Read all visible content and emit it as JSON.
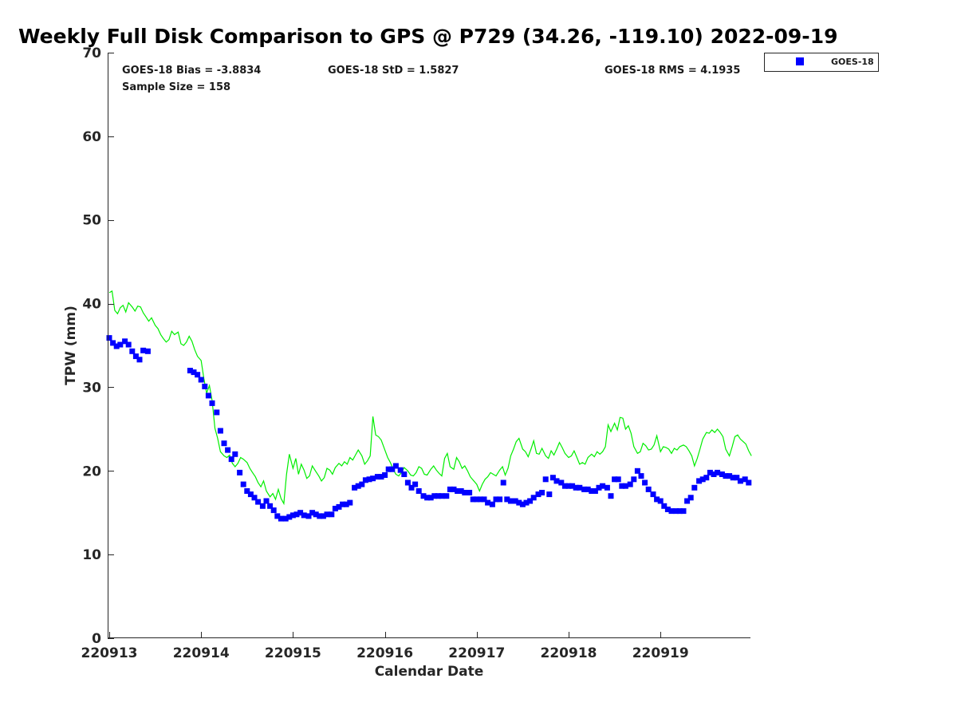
{
  "chart_data": {
    "type": "scatter",
    "title": "Weekly Full Disk Comparison to GPS @ P729 (34.26, -119.10) 2022-09-19",
    "xlabel": "Calendar Date",
    "ylabel": "TPW (mm)",
    "xlim": [
      220913,
      220920
    ],
    "ylim": [
      0,
      70
    ],
    "x_ticks": [
      "220913",
      "220914",
      "220915",
      "220916",
      "220917",
      "220918",
      "220919"
    ],
    "y_ticks": [
      0,
      10,
      20,
      30,
      40,
      50,
      60,
      70
    ],
    "grid": false,
    "legend": {
      "placement": "top-right",
      "entries": [
        "GOES-18"
      ]
    },
    "stats": {
      "bias": "GOES-18 Bias = -3.8834",
      "std": "GOES-18 StD = 1.5827",
      "rms": "GOES-18 RMS = 4.1935",
      "sample": "Sample Size = 158"
    },
    "series": [
      {
        "name": "GOES-18",
        "type": "scatter",
        "color": "#0000ff",
        "x": [
          220913.0,
          220913.04,
          220913.08,
          220913.12,
          220913.17,
          220913.21,
          220913.25,
          220913.29,
          220913.33,
          220913.37,
          220913.42,
          220913.88,
          220913.92,
          220913.96,
          220914.0,
          220914.04,
          220914.08,
          220914.12,
          220914.17,
          220914.21,
          220914.25,
          220914.29,
          220914.33,
          220914.37,
          220914.42,
          220914.46,
          220914.5,
          220914.54,
          220914.58,
          220914.62,
          220914.67,
          220914.71,
          220914.75,
          220914.79,
          220914.83,
          220914.87,
          220914.92,
          220914.96,
          220915.0,
          220915.04,
          220915.08,
          220915.12,
          220915.17,
          220915.21,
          220915.25,
          220915.29,
          220915.33,
          220915.37,
          220915.42,
          220915.46,
          220915.5,
          220915.54,
          220915.58,
          220915.62,
          220915.67,
          220915.71,
          220915.75,
          220915.79,
          220915.83,
          220915.87,
          220915.92,
          220915.96,
          220916.0,
          220916.04,
          220916.08,
          220916.12,
          220916.17,
          220916.21,
          220916.25,
          220916.29,
          220916.33,
          220916.37,
          220916.42,
          220916.46,
          220916.5,
          220916.54,
          220916.58,
          220916.62,
          220916.67,
          220916.71,
          220916.75,
          220916.79,
          220916.83,
          220916.87,
          220916.92,
          220916.96,
          220917.0,
          220917.04,
          220917.08,
          220917.12,
          220917.17,
          220917.21,
          220917.25,
          220917.29,
          220917.33,
          220917.37,
          220917.42,
          220917.46,
          220917.5,
          220917.54,
          220917.58,
          220917.62,
          220917.67,
          220917.71,
          220917.75,
          220917.79,
          220917.83,
          220917.87,
          220917.92,
          220917.96,
          220918.0,
          220918.04,
          220918.08,
          220918.12,
          220918.17,
          220918.21,
          220918.25,
          220918.29,
          220918.33,
          220918.37,
          220918.42,
          220918.46,
          220918.5,
          220918.54,
          220918.58,
          220918.62,
          220918.67,
          220918.71,
          220918.75,
          220918.79,
          220918.83,
          220918.87,
          220918.92,
          220918.96,
          220919.0,
          220919.04,
          220919.08,
          220919.12,
          220919.17,
          220919.21,
          220919.25,
          220919.29,
          220919.33,
          220919.37,
          220919.42,
          220919.46,
          220919.5,
          220919.54,
          220919.58,
          220919.62,
          220919.67,
          220919.71,
          220919.75,
          220919.79,
          220919.83,
          220919.87,
          220919.92,
          220919.96
        ],
        "y": [
          35.9,
          35.3,
          34.9,
          35.1,
          35.5,
          35.1,
          34.3,
          33.7,
          33.3,
          34.4,
          34.3,
          32.0,
          31.8,
          31.5,
          30.9,
          30.1,
          29.0,
          28.1,
          27.0,
          24.8,
          23.3,
          22.5,
          21.4,
          22.0,
          19.8,
          18.4,
          17.6,
          17.2,
          16.8,
          16.3,
          15.8,
          16.4,
          15.8,
          15.3,
          14.6,
          14.3,
          14.3,
          14.5,
          14.7,
          14.8,
          15.0,
          14.7,
          14.6,
          15.0,
          14.8,
          14.6,
          14.6,
          14.8,
          14.8,
          15.5,
          15.7,
          16.0,
          16.0,
          16.2,
          18.0,
          18.2,
          18.4,
          18.9,
          19.0,
          19.1,
          19.3,
          19.3,
          19.5,
          20.2,
          20.2,
          20.6,
          20.1,
          19.6,
          18.6,
          18.0,
          18.4,
          17.6,
          17.0,
          16.8,
          16.8,
          17.0,
          17.0,
          17.0,
          17.0,
          17.8,
          17.8,
          17.6,
          17.6,
          17.4,
          17.4,
          16.6,
          16.6,
          16.6,
          16.6,
          16.2,
          16.0,
          16.6,
          16.6,
          18.6,
          16.6,
          16.4,
          16.4,
          16.2,
          16.0,
          16.2,
          16.4,
          16.8,
          17.2,
          17.4,
          19.0,
          17.2,
          19.2,
          18.8,
          18.6,
          18.2,
          18.2,
          18.2,
          18.0,
          18.0,
          17.8,
          17.8,
          17.6,
          17.6,
          18.0,
          18.2,
          18.0,
          17.0,
          19.0,
          19.0,
          18.2,
          18.2,
          18.4,
          19.0,
          20.0,
          19.4,
          18.6,
          17.8,
          17.2,
          16.6,
          16.4,
          15.8,
          15.4,
          15.2,
          15.2,
          15.2,
          15.2,
          16.4,
          16.8,
          18.0,
          18.8,
          19.0,
          19.2,
          19.8,
          19.6,
          19.8,
          19.6,
          19.4,
          19.4,
          19.2,
          19.2,
          18.8,
          19.0,
          18.6
        ]
      },
      {
        "name": "",
        "type": "line",
        "color": "#00ee00",
        "x": [
          220913.0,
          220913.03,
          220913.06,
          220913.09,
          220913.12,
          220913.15,
          220913.18,
          220913.21,
          220913.25,
          220913.28,
          220913.31,
          220913.34,
          220913.37,
          220913.4,
          220913.43,
          220913.46,
          220913.5,
          220913.53,
          220913.56,
          220913.59,
          220913.62,
          220913.65,
          220913.68,
          220913.71,
          220913.75,
          220913.78,
          220913.81,
          220913.84,
          220913.87,
          220913.9,
          220913.93,
          220913.96,
          220914.0,
          220914.03,
          220914.06,
          220914.09,
          220914.12,
          220914.15,
          220914.18,
          220914.21,
          220914.25,
          220914.28,
          220914.31,
          220914.34,
          220914.37,
          220914.4,
          220914.43,
          220914.46,
          220914.5,
          220914.53,
          220914.56,
          220914.59,
          220914.62,
          220914.65,
          220914.68,
          220914.71,
          220914.75,
          220914.78,
          220914.81,
          220914.84,
          220914.87,
          220914.9,
          220914.93,
          220914.96,
          220915.0,
          220915.03,
          220915.06,
          220915.09,
          220915.12,
          220915.15,
          220915.18,
          220915.21,
          220915.25,
          220915.28,
          220915.31,
          220915.34,
          220915.37,
          220915.4,
          220915.43,
          220915.46,
          220915.5,
          220915.53,
          220915.56,
          220915.59,
          220915.62,
          220915.65,
          220915.68,
          220915.71,
          220915.75,
          220915.78,
          220915.81,
          220915.84,
          220915.87,
          220915.9,
          220915.93,
          220915.96,
          220916.0,
          220916.03,
          220916.06,
          220916.09,
          220916.12,
          220916.15,
          220916.18,
          220916.21,
          220916.25,
          220916.28,
          220916.31,
          220916.34,
          220916.37,
          220916.4,
          220916.43,
          220916.46,
          220916.5,
          220916.53,
          220916.56,
          220916.59,
          220916.62,
          220916.65,
          220916.68,
          220916.71,
          220916.75,
          220916.78,
          220916.81,
          220916.84,
          220916.87,
          220916.9,
          220916.93,
          220916.96,
          220917.0,
          220917.03,
          220917.06,
          220917.09,
          220917.12,
          220917.15,
          220917.18,
          220917.21,
          220917.25,
          220917.28,
          220917.31,
          220917.34,
          220917.37,
          220917.4,
          220917.43,
          220917.46,
          220917.5,
          220917.53,
          220917.56,
          220917.59,
          220917.62,
          220917.65,
          220917.68,
          220917.71,
          220917.75,
          220917.78,
          220917.81,
          220917.84,
          220917.87,
          220917.9,
          220917.93,
          220917.96,
          220918.0,
          220918.03,
          220918.06,
          220918.09,
          220918.12,
          220918.15,
          220918.18,
          220918.21,
          220918.25,
          220918.28,
          220918.31,
          220918.34,
          220918.37,
          220918.4,
          220918.43,
          220918.46,
          220918.5,
          220918.53,
          220918.56,
          220918.59,
          220918.62,
          220918.65,
          220918.68,
          220918.71,
          220918.75,
          220918.78,
          220918.81,
          220918.84,
          220918.87,
          220918.9,
          220918.93,
          220918.96,
          220919.0,
          220919.03,
          220919.06,
          220919.09,
          220919.12,
          220919.15,
          220919.18,
          220919.21,
          220919.25,
          220919.28,
          220919.31,
          220919.34,
          220919.37,
          220919.4,
          220919.43,
          220919.46,
          220919.5,
          220919.53,
          220919.56,
          220919.59,
          220919.62,
          220919.65,
          220919.68,
          220919.71,
          220919.75,
          220919.78,
          220919.81,
          220919.84,
          220919.87,
          220919.9,
          220919.93,
          220919.96,
          220919.99
        ],
        "y": [
          41.3,
          41.5,
          39.2,
          38.8,
          39.5,
          39.8,
          39.0,
          40.1,
          39.6,
          39.1,
          39.7,
          39.6,
          38.9,
          38.4,
          37.9,
          38.3,
          37.4,
          37.0,
          36.3,
          35.8,
          35.4,
          35.7,
          36.7,
          36.3,
          36.6,
          35.2,
          35.0,
          35.4,
          36.1,
          35.5,
          34.5,
          33.7,
          33.2,
          31.0,
          29.3,
          30.2,
          28.4,
          25.1,
          23.9,
          22.3,
          21.8,
          21.6,
          21.9,
          20.9,
          20.5,
          20.9,
          21.6,
          21.4,
          21.0,
          20.3,
          19.8,
          19.3,
          18.6,
          18.1,
          18.8,
          17.6,
          16.9,
          17.3,
          16.6,
          17.8,
          16.7,
          16.1,
          19.6,
          22.0,
          20.3,
          21.5,
          19.6,
          20.8,
          20.1,
          19.1,
          19.4,
          20.6,
          19.9,
          19.4,
          18.8,
          19.2,
          20.3,
          20.1,
          19.6,
          20.4,
          20.9,
          20.6,
          21.1,
          20.8,
          21.6,
          21.3,
          21.9,
          22.5,
          21.8,
          20.8,
          21.2,
          21.8,
          26.5,
          24.3,
          24.1,
          23.7,
          22.5,
          21.6,
          21.0,
          20.2,
          19.6,
          19.4,
          19.8,
          20.4,
          20.0,
          19.5,
          19.4,
          19.8,
          20.5,
          20.3,
          19.6,
          19.5,
          20.2,
          20.6,
          20.1,
          19.7,
          19.4,
          21.5,
          22.1,
          20.5,
          20.2,
          21.6,
          21.1,
          20.3,
          20.6,
          20.0,
          19.3,
          18.9,
          18.4,
          17.6,
          18.4,
          19.0,
          19.3,
          19.8,
          19.6,
          19.4,
          20.1,
          20.5,
          19.5,
          20.3,
          21.8,
          22.6,
          23.5,
          23.9,
          22.6,
          22.3,
          21.7,
          22.6,
          23.6,
          22.1,
          22.0,
          22.7,
          21.8,
          21.5,
          22.4,
          21.9,
          22.6,
          23.4,
          22.8,
          22.1,
          21.6,
          21.8,
          22.4,
          21.6,
          20.8,
          21.0,
          20.8,
          21.6,
          22.0,
          21.7,
          22.3,
          22.0,
          22.3,
          22.9,
          25.5,
          24.7,
          25.7,
          24.9,
          26.4,
          26.3,
          25.0,
          25.4,
          24.5,
          22.9,
          22.1,
          22.3,
          23.3,
          23.0,
          22.5,
          22.6,
          23.1,
          24.2,
          22.3,
          22.9,
          22.8,
          22.6,
          22.1,
          22.7,
          22.5,
          22.9,
          23.1,
          22.9,
          22.4,
          21.8,
          20.6,
          21.5,
          22.6,
          23.8,
          24.6,
          24.5,
          24.9,
          24.6,
          25.0,
          24.6,
          24.1,
          22.6,
          21.8,
          22.9,
          24.1,
          24.3,
          23.8,
          23.5,
          23.2,
          22.4,
          21.8
        ]
      }
    ]
  }
}
